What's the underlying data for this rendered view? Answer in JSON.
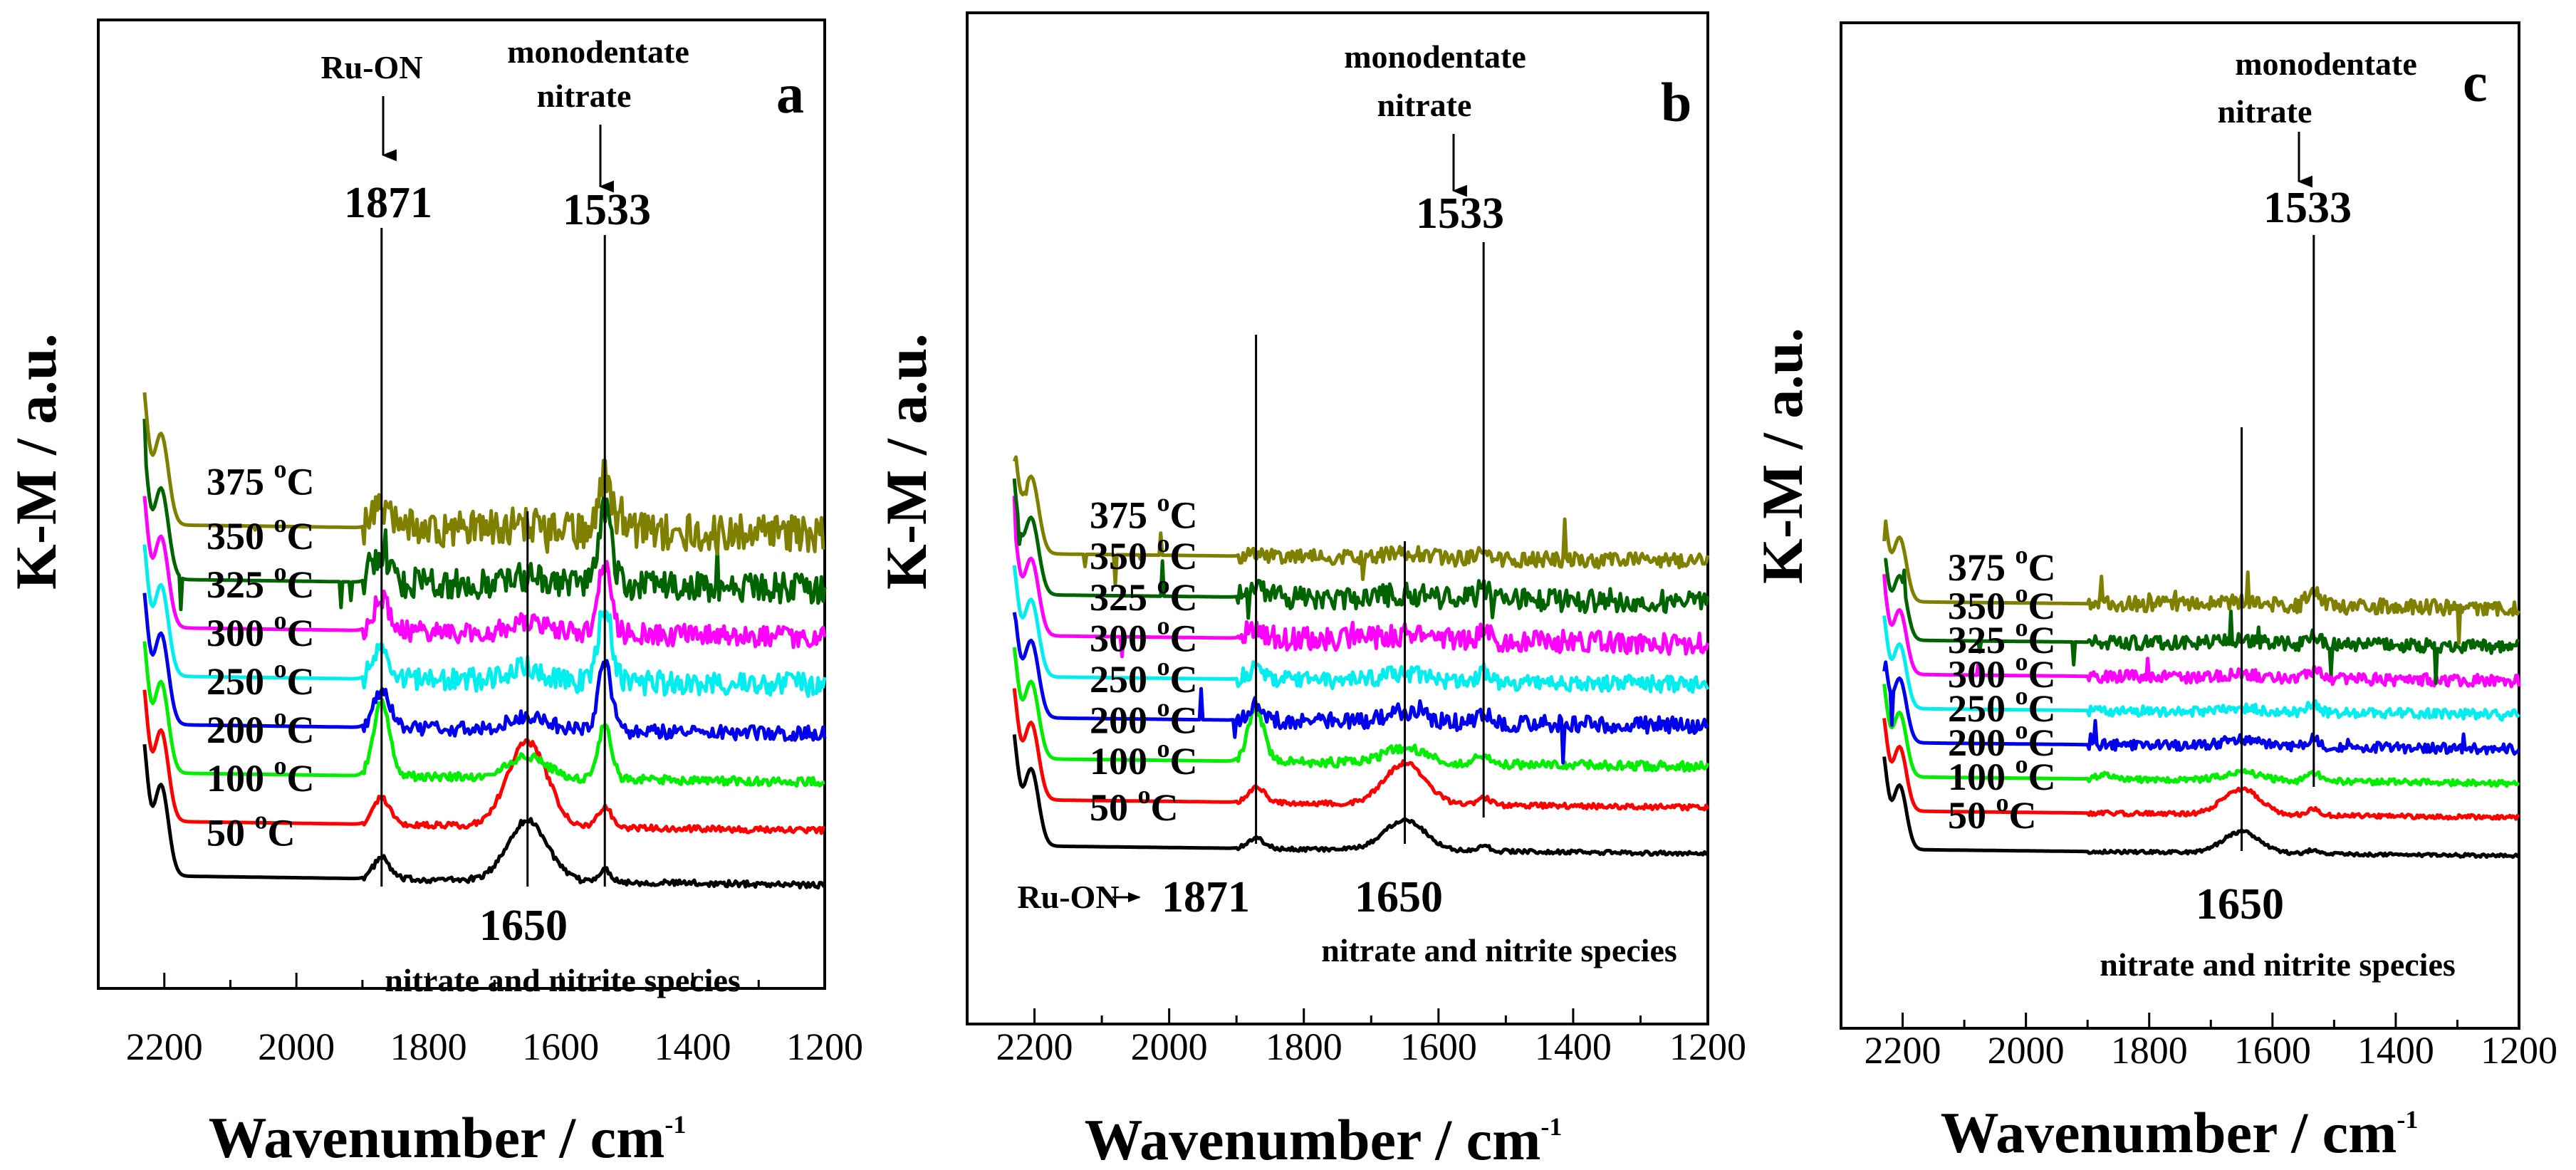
{
  "chart_data": [
    {
      "type": "line",
      "panel": "a",
      "xlabel": "Wavenumber / cm",
      "xlabel_superscript": "-1",
      "ylabel": "K-M / a.u.",
      "xlim": [
        2300,
        1200
      ],
      "xticks": [
        2200,
        2000,
        1800,
        1600,
        1400,
        1200
      ],
      "temp_unit": "C",
      "temp_degree": "o",
      "series": [
        {
          "name": "50",
          "color": "#000000",
          "offset": 0.0,
          "n1871": 0.35,
          "n1650": 1.0,
          "n1533": 0.2,
          "noise": 0.05,
          "spikes": 0
        },
        {
          "name": "100",
          "color": "#ff0000",
          "offset": 0.9,
          "n1871": 0.45,
          "n1650": 1.4,
          "n1533": 0.35,
          "noise": 0.05,
          "spikes": 0
        },
        {
          "name": "200",
          "color": "#00ee00",
          "offset": 1.7,
          "n1871": 1.2,
          "n1650": 0.35,
          "n1533": 0.9,
          "noise": 0.07,
          "spikes": 0
        },
        {
          "name": "250",
          "color": "#0000ee",
          "offset": 2.5,
          "n1871": 0.6,
          "n1650": 0.2,
          "n1533": 1.1,
          "noise": 0.12,
          "spikes": 0
        },
        {
          "name": "300",
          "color": "#00eeee",
          "offset": 3.3,
          "n1871": 0.6,
          "n1650": 0.2,
          "n1533": 1.3,
          "noise": 0.2,
          "spikes": 0
        },
        {
          "name": "325",
          "color": "#ff00ff",
          "offset": 4.1,
          "n1871": 0.5,
          "n1650": 0.15,
          "n1533": 1.2,
          "noise": 0.18,
          "spikes": 0
        },
        {
          "name": "350",
          "color": "#006400",
          "offset": 4.9,
          "n1871": 0.45,
          "n1650": 0.1,
          "n1533": 1.3,
          "noise": 0.25,
          "spikes": 1
        },
        {
          "name": "375",
          "color": "#808000",
          "offset": 5.8,
          "n1871": 0.3,
          "n1650": 0.1,
          "n1533": 0.9,
          "noise": 0.3,
          "spikes": 1
        }
      ],
      "annotations": {
        "top_left_name": "Ru-ON",
        "top_left_value": "1871",
        "top_right_name_1": "monodentate",
        "top_right_name_2": "nitrate",
        "top_right_value": "1533",
        "bottom_value": "1650",
        "bottom_name": "nitrate and nitrite species"
      }
    },
    {
      "type": "line",
      "panel": "b",
      "xlabel": "Wavenumber / cm",
      "xlabel_superscript": "-1",
      "ylabel": "K-M / a.u.",
      "xlim": [
        2300,
        1200
      ],
      "xticks": [
        2200,
        2000,
        1800,
        1600,
        1400,
        1200
      ],
      "temp_unit": "C",
      "temp_degree": "o",
      "series": [
        {
          "name": "50",
          "color": "#000000",
          "offset": 0.0,
          "n1871": 0.2,
          "n1650": 0.6,
          "n1533": 0.1,
          "noise": 0.04,
          "spikes": 0
        },
        {
          "name": "100",
          "color": "#ff0000",
          "offset": 0.9,
          "n1871": 0.3,
          "n1650": 0.8,
          "n1533": 0.15,
          "noise": 0.05,
          "spikes": 0
        },
        {
          "name": "200",
          "color": "#00ee00",
          "offset": 1.7,
          "n1871": 1.0,
          "n1650": 0.3,
          "n1533": 0.2,
          "noise": 0.09,
          "spikes": 0
        },
        {
          "name": "250",
          "color": "#0000ee",
          "offset": 2.5,
          "n1871": 0.3,
          "n1650": 0.2,
          "n1533": 0.2,
          "noise": 0.16,
          "spikes": 1
        },
        {
          "name": "300",
          "color": "#00eeee",
          "offset": 3.3,
          "n1871": 0.2,
          "n1650": 0.15,
          "n1533": 0.2,
          "noise": 0.16,
          "spikes": 0
        },
        {
          "name": "325",
          "color": "#ff00ff",
          "offset": 4.1,
          "n1871": 0.2,
          "n1650": 0.1,
          "n1533": 0.2,
          "noise": 0.22,
          "spikes": 1
        },
        {
          "name": "350",
          "color": "#006400",
          "offset": 4.9,
          "n1871": 0.2,
          "n1650": 0.1,
          "n1533": 0.2,
          "noise": 0.22,
          "spikes": 1
        },
        {
          "name": "375",
          "color": "#808000",
          "offset": 5.7,
          "n1871": 0.1,
          "n1650": 0.1,
          "n1533": 0.2,
          "noise": 0.15,
          "spikes": 1
        }
      ],
      "annotations": {
        "top_right_name_1": "monodentate",
        "top_right_name_2": "nitrate",
        "top_right_value": "1533",
        "bottom_prefix": "Ru-ON",
        "bottom_arrow": "→",
        "bottom_left_value": "1871",
        "bottom_value": "1650",
        "bottom_name": "nitrate and nitrite species"
      }
    },
    {
      "type": "line",
      "panel": "c",
      "xlabel": "Wavenumber / cm",
      "xlabel_superscript": "-1",
      "ylabel": "K-M / a.u.",
      "xlim": [
        2300,
        1200
      ],
      "xticks": [
        2200,
        2000,
        1800,
        1600,
        1400,
        1200
      ],
      "temp_unit": "C",
      "temp_degree": "o",
      "series": [
        {
          "name": "50",
          "color": "#000000",
          "offset": 0.0,
          "n1871": 0.0,
          "n1650": 0.5,
          "n1533": 0.1,
          "noise": 0.04,
          "spikes": 0
        },
        {
          "name": "100",
          "color": "#ff0000",
          "offset": 0.9,
          "n1871": 0.0,
          "n1650": 0.6,
          "n1533": 0.15,
          "noise": 0.05,
          "spikes": 0
        },
        {
          "name": "200",
          "color": "#00ee00",
          "offset": 1.7,
          "n1871": 0.1,
          "n1650": 0.2,
          "n1533": 0.2,
          "noise": 0.07,
          "spikes": 0
        },
        {
          "name": "250",
          "color": "#0000ee",
          "offset": 2.5,
          "n1871": 0.0,
          "n1650": 0.15,
          "n1533": 0.2,
          "noise": 0.12,
          "spikes": 1
        },
        {
          "name": "300",
          "color": "#00eeee",
          "offset": 3.3,
          "n1871": 0.0,
          "n1650": 0.1,
          "n1533": 0.2,
          "noise": 0.12,
          "spikes": 0
        },
        {
          "name": "325",
          "color": "#ff00ff",
          "offset": 4.1,
          "n1871": 0.0,
          "n1650": 0.1,
          "n1533": 0.2,
          "noise": 0.14,
          "spikes": 1
        },
        {
          "name": "350",
          "color": "#006400",
          "offset": 4.9,
          "n1871": 0.0,
          "n1650": 0.1,
          "n1533": 0.2,
          "noise": 0.16,
          "spikes": 1
        },
        {
          "name": "375",
          "color": "#808000",
          "offset": 5.8,
          "n1871": 0.0,
          "n1650": 0.1,
          "n1533": 0.4,
          "noise": 0.18,
          "spikes": 1
        }
      ],
      "annotations": {
        "top_right_name_1": "monodentate",
        "top_right_name_2": "nitrate",
        "top_right_value": "1533",
        "bottom_value": "1650",
        "bottom_name": "nitrate and nitrite species"
      }
    }
  ]
}
